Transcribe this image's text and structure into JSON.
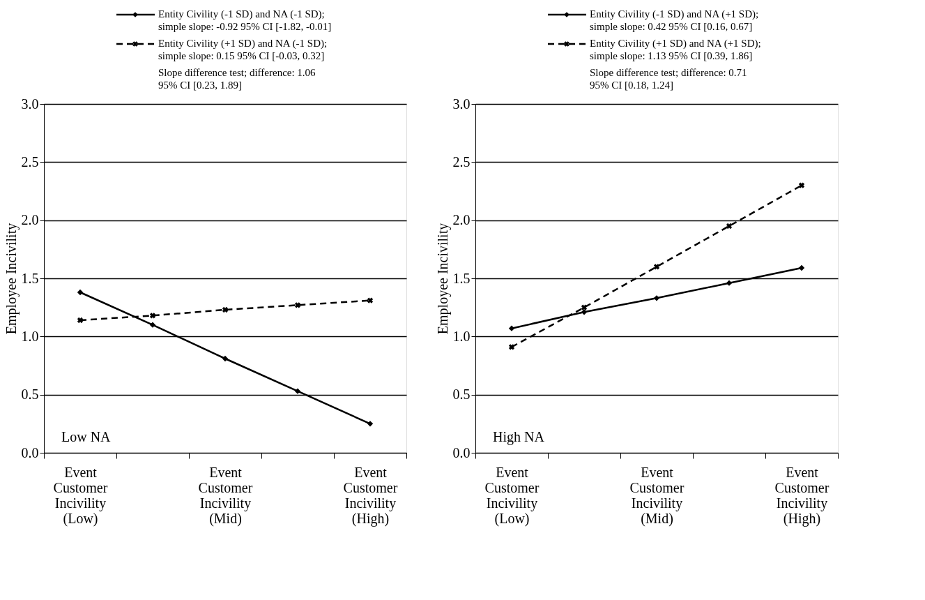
{
  "chart_data": [
    {
      "type": "line",
      "ylabel": "Employee Incivility",
      "categories": [
        "Event Customer Incivility (Low)",
        null,
        "Event Customer Incivility (Mid)",
        null,
        "Event Customer Incivility (High)"
      ],
      "ylim": [
        0,
        3
      ],
      "yticks": [
        {
          "value": 0,
          "label": "0.0"
        },
        {
          "value": 0.5,
          "label": "0.5"
        },
        {
          "value": 1,
          "label": "1.0"
        },
        {
          "value": 1.5,
          "label": "1.5"
        },
        {
          "value": 2,
          "label": "2.0"
        },
        {
          "value": 2.5,
          "label": "2.5"
        },
        {
          "value": 3,
          "label": "3.0"
        }
      ],
      "grid": "y",
      "legend": "top",
      "series": [
        {
          "name": "Entity Civility (-1 SD) and NA (-1 SD); simple slope: -0.92 95% CI [-1.82, -0.01]",
          "color": "#000000",
          "line_style": "solid",
          "marker": "diamond",
          "values": [
            1.38,
            1.1,
            0.81,
            0.53,
            0.25
          ]
        },
        {
          "name": "Entity Civility (+1 SD) and NA (-1 SD); simple slope: 0.15 95% CI [-0.03, 0.32]",
          "color": "#000000",
          "line_style": "dashed",
          "marker": "cross",
          "values": [
            1.14,
            1.18,
            1.23,
            1.27,
            1.31
          ]
        }
      ],
      "annotations": [
        "Slope difference test; difference: 1.06 95% CI [0.23, 1.89]",
        "Low NA"
      ]
    },
    {
      "type": "line",
      "ylabel": "Employee Incivility",
      "categories": [
        "Event Customer Incivility (Low)",
        null,
        "Event Customer Incivility (Mid)",
        null,
        "Event Customer Incivility (High)"
      ],
      "ylim": [
        0,
        3
      ],
      "yticks": [
        {
          "value": 0,
          "label": "0.0"
        },
        {
          "value": 0.5,
          "label": "0.5"
        },
        {
          "value": 1,
          "label": "1.0"
        },
        {
          "value": 1.5,
          "label": "1.5"
        },
        {
          "value": 2,
          "label": "2.0"
        },
        {
          "value": 2.5,
          "label": "2.5"
        },
        {
          "value": 3,
          "label": "3.0"
        }
      ],
      "grid": "y",
      "legend": "top",
      "series": [
        {
          "name": "Entity Civility (-1 SD) and NA (+1 SD); simple slope: 0.42 95% CI [0.16, 0.67]",
          "color": "#000000",
          "line_style": "solid",
          "marker": "diamond",
          "values": [
            1.07,
            1.21,
            1.33,
            1.46,
            1.59
          ]
        },
        {
          "name": "Entity Civility (+1 SD) and NA (+1 SD); simple slope: 1.13 95% CI [0.39, 1.86]",
          "color": "#000000",
          "line_style": "dashed",
          "marker": "cross",
          "values": [
            0.91,
            1.25,
            1.6,
            1.95,
            2.3
          ]
        }
      ],
      "annotations": [
        "Slope difference test; difference: 0.71 95% CI [0.18, 1.24]",
        "High NA"
      ]
    }
  ]
}
